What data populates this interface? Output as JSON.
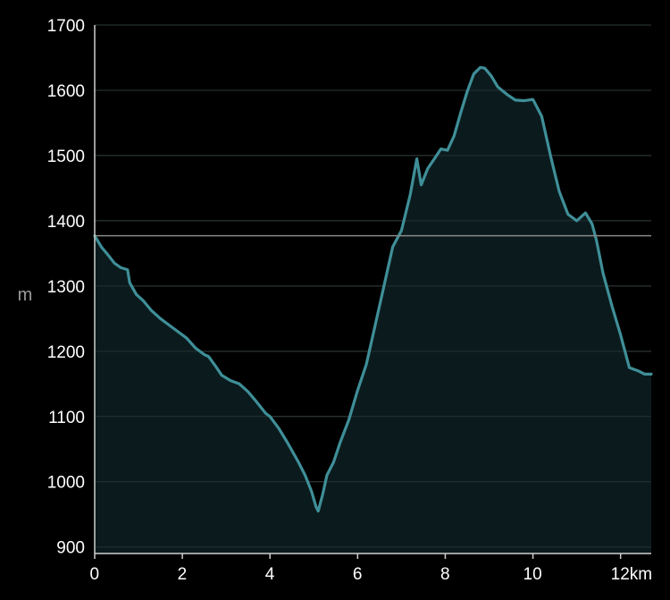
{
  "chart_data": {
    "type": "area",
    "ylabel": "m",
    "x_unit": "km",
    "xlim": [
      0,
      12.7
    ],
    "ylim": [
      890,
      1700
    ],
    "y_ticks": [
      900,
      1000,
      1100,
      1200,
      1300,
      1400,
      1500,
      1600,
      1700
    ],
    "y_tick_labels": [
      "900",
      "1000",
      "1100",
      "1200",
      "1300",
      "1400",
      "1500",
      "1600",
      "1700"
    ],
    "x_ticks": [
      0,
      2,
      4,
      6,
      8,
      10,
      12
    ],
    "x_tick_labels": [
      "0",
      "2",
      "4",
      "6",
      "8",
      "10",
      "12km"
    ],
    "reference_line": 1377,
    "grid": true,
    "colors": {
      "line": "#3f8f98",
      "fill": "#0b1b1d",
      "grid": "#3a3a3a",
      "reference": "#888888",
      "text": "#ffffff",
      "ylabel": "#9a9a9a"
    },
    "series": [
      {
        "x": [
          0,
          0.15,
          0.3,
          0.45,
          0.6,
          0.75,
          0.8,
          0.95,
          1.1,
          1.3,
          1.5,
          1.7,
          1.9,
          2.1,
          2.3,
          2.5,
          2.6,
          2.75,
          2.9,
          3.1,
          3.3,
          3.5,
          3.7,
          3.9,
          4.0,
          4.2,
          4.4,
          4.55,
          4.65,
          4.8,
          4.95,
          5.05,
          5.1,
          5.2,
          5.3,
          5.45,
          5.6,
          5.8,
          6.0,
          6.2,
          6.4,
          6.6,
          6.8,
          7.0,
          7.2,
          7.35,
          7.45,
          7.6,
          7.75,
          7.9,
          8.05,
          8.2,
          8.35,
          8.5,
          8.65,
          8.8,
          8.9,
          9.05,
          9.2,
          9.4,
          9.6,
          9.8,
          10.0,
          10.2,
          10.4,
          10.6,
          10.8,
          11.0,
          11.2,
          11.35,
          11.45,
          11.6,
          11.8,
          12.0,
          12.2,
          12.4,
          12.55,
          12.7
        ],
        "values": [
          1377,
          1360,
          1348,
          1335,
          1328,
          1325,
          1305,
          1287,
          1278,
          1262,
          1250,
          1240,
          1230,
          1220,
          1205,
          1195,
          1192,
          1178,
          1163,
          1155,
          1150,
          1138,
          1122,
          1105,
          1100,
          1082,
          1060,
          1042,
          1030,
          1010,
          985,
          962,
          955,
          980,
          1010,
          1030,
          1060,
          1095,
          1140,
          1180,
          1240,
          1300,
          1360,
          1385,
          1440,
          1495,
          1455,
          1480,
          1495,
          1510,
          1508,
          1530,
          1565,
          1598,
          1625,
          1635,
          1634,
          1622,
          1605,
          1594,
          1585,
          1584,
          1586,
          1560,
          1500,
          1445,
          1410,
          1400,
          1412,
          1395,
          1370,
          1320,
          1270,
          1225,
          1175,
          1170,
          1165,
          1165
        ]
      }
    ]
  }
}
